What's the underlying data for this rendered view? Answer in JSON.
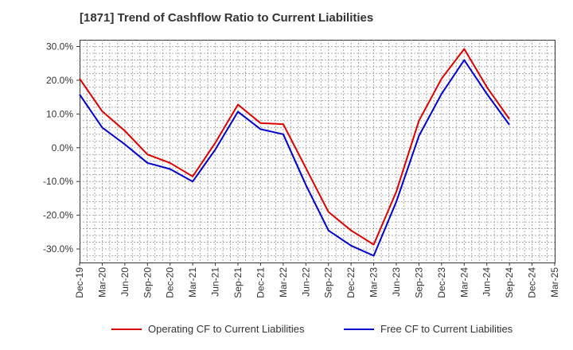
{
  "chart_data": {
    "type": "line",
    "title": "[1871]  Trend of Cashflow Ratio to Current Liabilities",
    "xlabel": "",
    "ylabel": "",
    "ylim": [
      -34,
      32
    ],
    "yticks": [
      30,
      20,
      10,
      0,
      -10,
      -20,
      -30
    ],
    "ytick_labels": [
      "30.0%",
      "20.0%",
      "10.0%",
      "0.0%",
      "-10.0%",
      "-20.0%",
      "-30.0%"
    ],
    "xtick_labels": [
      "Dec-19",
      "Mar-20",
      "Jun-20",
      "Sep-20",
      "Dec-20",
      "Mar-21",
      "Jun-21",
      "Sep-21",
      "Dec-21",
      "Mar-22",
      "Jun-22",
      "Sep-22",
      "Dec-22",
      "Mar-23",
      "Jun-23",
      "Sep-23",
      "Dec-23",
      "Mar-24",
      "Jun-24",
      "Sep-24",
      "Dec-24",
      "Mar-25"
    ],
    "grid": true,
    "legend_position": "bottom",
    "series": [
      {
        "name": "Operating CF to Current Liabilities",
        "color": "#dd0000",
        "values": [
          20.5,
          10.8,
          5.0,
          -2.0,
          -4.5,
          -8.5,
          1.5,
          12.8,
          7.3,
          7.0,
          -6.0,
          -19.0,
          -24.5,
          -28.7,
          -13.0,
          8.0,
          20.5,
          29.3,
          18.0,
          8.5
        ]
      },
      {
        "name": "Free CF to Current Liabilities",
        "color": "#0000cc",
        "values": [
          15.8,
          6.0,
          1.0,
          -4.5,
          -6.3,
          -10.0,
          -0.5,
          10.7,
          5.5,
          4.0,
          -11.0,
          -24.5,
          -29.0,
          -32.0,
          -16.0,
          3.5,
          16.0,
          26.0,
          16.0,
          6.8
        ]
      }
    ]
  }
}
